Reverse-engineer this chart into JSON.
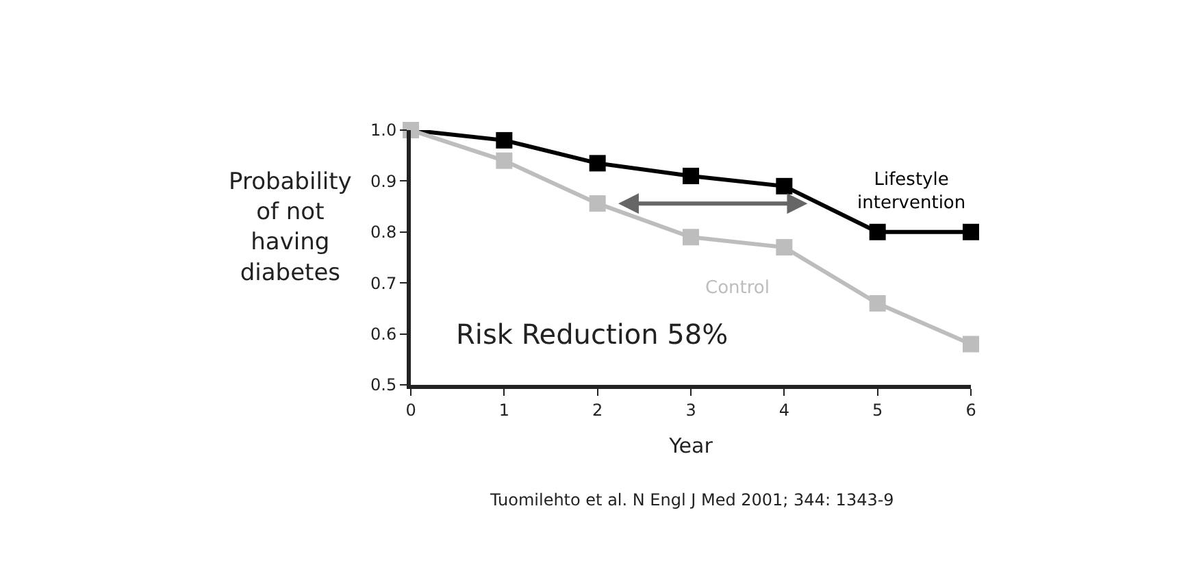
{
  "chart_data": {
    "type": "line",
    "xlabel": "Year",
    "ylabel": "Probability\nof not\nhaving\ndiabetes",
    "x": [
      0,
      1,
      2,
      3,
      4,
      5,
      6
    ],
    "series": [
      {
        "name": "Lifestyle\nintervention",
        "color": "#000000",
        "values": [
          1.0,
          0.98,
          0.935,
          0.91,
          0.89,
          0.8,
          0.8
        ]
      },
      {
        "name": "Control",
        "color": "#bdbdbd",
        "values": [
          1.0,
          0.94,
          0.856,
          0.79,
          0.77,
          0.66,
          0.58
        ]
      }
    ],
    "xlim": [
      0,
      6
    ],
    "xticks": [
      0,
      1,
      2,
      3,
      4,
      5,
      6
    ],
    "ylim": [
      0.5,
      1.0
    ],
    "yticks": [
      {
        "value": 0.5,
        "label": "0.5"
      },
      {
        "value": 0.6,
        "label": "0.6"
      },
      {
        "value": 0.7,
        "label": "0.7"
      },
      {
        "value": 0.8,
        "label": "0.8"
      },
      {
        "value": 0.9,
        "label": "0.9"
      },
      {
        "value": 1.0,
        "label": "1.0"
      }
    ],
    "marker": "square",
    "line_style": "solid",
    "legend": false,
    "annotations": [
      "Risk Reduction 58%",
      "Tuomilehto et al. N Engl J Med 2001; 344: 1343-9"
    ]
  }
}
